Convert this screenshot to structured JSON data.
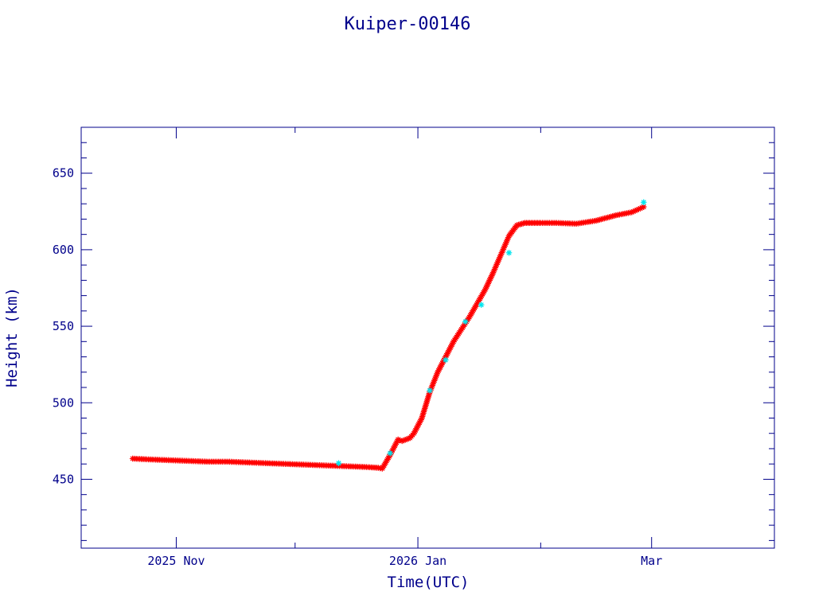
{
  "chart_data": {
    "type": "scatter",
    "title": "Kuiper-00146",
    "xlabel": "Time(UTC)",
    "ylabel": "Height (km)",
    "x_range": [
      "2025-10-08",
      "2026-04-01"
    ],
    "y_range": [
      405,
      680
    ],
    "x_tick_labels": [
      {
        "date": "2025-11-01",
        "label": "2025 Nov"
      },
      {
        "date": "2026-01-01",
        "label": "2026 Jan"
      },
      {
        "date": "2026-03-01",
        "label": "Mar"
      }
    ],
    "x_minor_ticks": [
      "2025-10-01",
      "2025-12-01",
      "2026-02-01",
      "2026-04-01"
    ],
    "y_ticks": [
      450,
      500,
      550,
      600,
      650
    ],
    "grid": false,
    "series": [
      {
        "marker": "asterisk",
        "color": "#ff0000",
        "x": [
          "2025-10-21",
          "2025-10-25",
          "2025-10-30",
          "2025-11-04",
          "2025-11-09",
          "2025-11-14",
          "2025-11-19",
          "2025-11-24",
          "2025-11-29",
          "2025-12-04",
          "2025-12-09",
          "2025-12-14",
          "2025-12-19",
          "2025-12-22",
          "2025-12-23",
          "2025-12-25",
          "2025-12-27",
          "2025-12-28",
          "2025-12-30",
          "2025-12-31",
          "2026-01-02",
          "2026-01-04",
          "2026-01-06",
          "2026-01-08",
          "2026-01-10",
          "2026-01-12",
          "2026-01-14",
          "2026-01-16",
          "2026-01-18",
          "2026-01-20",
          "2026-01-22",
          "2026-01-24",
          "2026-01-26",
          "2026-01-28",
          "2026-01-30",
          "2026-02-01",
          "2026-02-05",
          "2026-02-10",
          "2026-02-15",
          "2026-02-20",
          "2026-02-24",
          "2026-02-27"
        ],
        "y": [
          463.5,
          463,
          462.5,
          462,
          461.5,
          461.5,
          461,
          460.5,
          460,
          459.5,
          459,
          458.5,
          458,
          457.5,
          457,
          466,
          476,
          475,
          477,
          480,
          490,
          507,
          520,
          530,
          540,
          548,
          556,
          565,
          574,
          585,
          597,
          609,
          616,
          617.5,
          617.5,
          617.5,
          617.5,
          617,
          619,
          622.5,
          624.5,
          628
        ]
      },
      {
        "marker": "asterisk",
        "color": "#00e5ee",
        "x": [
          "2025-12-12",
          "2025-12-25",
          "2026-01-04",
          "2026-01-08",
          "2026-01-13",
          "2026-01-17",
          "2026-01-24",
          "2026-02-27"
        ],
        "y": [
          460.5,
          467,
          508,
          528,
          553,
          564,
          598,
          631
        ]
      }
    ]
  }
}
